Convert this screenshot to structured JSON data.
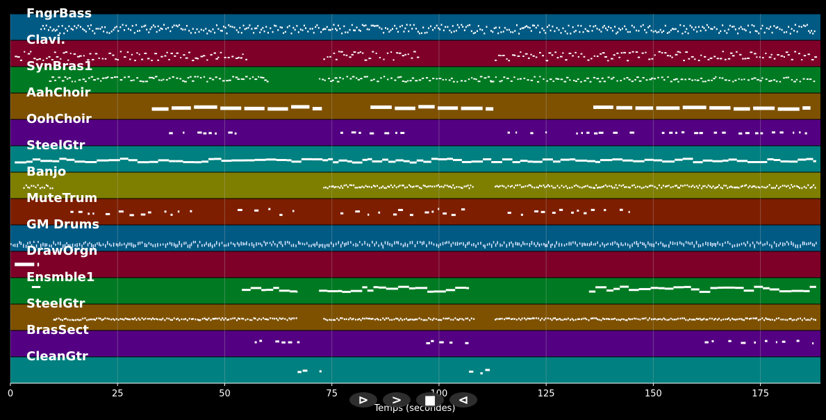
{
  "chart_data": {
    "type": "piano-roll",
    "xlabel": "Temps (secondes)",
    "xlim": [
      0,
      189
    ],
    "x_ticks": [
      0,
      25,
      50,
      75,
      100,
      125,
      150,
      175
    ],
    "grid": true,
    "tracks": [
      {
        "name": "FngrBass",
        "color": "#005a84",
        "segments": [
          [
            7,
            73
          ],
          [
            73,
            111
          ],
          [
            112,
            188
          ]
        ],
        "style": "dense-notes",
        "pitch": [
          0.38,
          0.72
        ]
      },
      {
        "name": "Clavi.",
        "color": "#7e0028",
        "segments": [
          [
            1,
            55
          ],
          [
            73,
            95
          ],
          [
            113,
            188
          ]
        ],
        "style": "scattered-notes",
        "pitch": [
          0.4,
          0.75
        ]
      },
      {
        "name": "SynBras1",
        "color": "#007a22",
        "segments": [
          [
            9,
            60
          ],
          [
            72,
            112
          ],
          [
            112,
            188
          ]
        ],
        "style": "scattered-notes",
        "pitch": [
          0.35,
          0.55
        ]
      },
      {
        "name": "AahChoir",
        "color": "#7e5100",
        "segments": [
          [
            33,
            73
          ],
          [
            84,
            113
          ],
          [
            136,
            187
          ]
        ],
        "style": "long-chords",
        "pitch": [
          0.45,
          0.55
        ]
      },
      {
        "name": "OohChoir",
        "color": "#540082",
        "segments": [
          [
            37,
            53
          ],
          [
            77,
            93
          ],
          [
            116,
            126
          ],
          [
            132,
            145
          ],
          [
            152,
            186
          ]
        ],
        "style": "sparse-blocks",
        "pitch": [
          0.45,
          0.5
        ]
      },
      {
        "name": "SteelGtr",
        "color": "#008080",
        "segments": [
          [
            1,
            7
          ],
          [
            7,
            188
          ]
        ],
        "style": "continuous-line",
        "pitch": [
          0.45,
          0.6
        ]
      },
      {
        "name": "Banjo",
        "color": "#7e7e00",
        "segments": [
          [
            3,
            10
          ],
          [
            73,
            108
          ],
          [
            113,
            188
          ]
        ],
        "style": "dense-notes",
        "pitch": [
          0.45,
          0.58
        ]
      },
      {
        "name": "MuteTrum",
        "color": "#7e1e00",
        "segments": [
          [
            14,
            43
          ],
          [
            53,
            67
          ],
          [
            77,
            106
          ],
          [
            116,
            146
          ]
        ],
        "style": "sparse-blocks",
        "pitch": [
          0.35,
          0.6
        ]
      },
      {
        "name": "GM Drums",
        "color": "#005a84",
        "segments": [
          [
            0,
            188
          ]
        ],
        "style": "drum-hits",
        "pitch": [
          0.6,
          0.75
        ]
      },
      {
        "name": "DrawOrgn",
        "color": "#7e0028",
        "segments": [
          [
            1,
            7
          ]
        ],
        "style": "long-chords",
        "pitch": [
          0.4,
          0.45
        ]
      },
      {
        "name": "Ensmble1",
        "color": "#007a22",
        "segments": [
          [
            5,
            7
          ],
          [
            54,
            67
          ],
          [
            72,
            107
          ],
          [
            135,
            188
          ]
        ],
        "style": "continuous-line",
        "pitch": [
          0.3,
          0.5
        ]
      },
      {
        "name": "SteelGtr",
        "color": "#7e5100",
        "segments": [
          [
            10,
            67
          ],
          [
            73,
            108
          ],
          [
            113,
            188
          ]
        ],
        "style": "dense-notes",
        "pitch": [
          0.5,
          0.58
        ]
      },
      {
        "name": "BrasSect",
        "color": "#540082",
        "segments": [
          [
            57,
            67
          ],
          [
            97,
            107
          ],
          [
            162,
            188
          ]
        ],
        "style": "sparse-blocks",
        "pitch": [
          0.35,
          0.45
        ]
      },
      {
        "name": "CleanGtr",
        "color": "#008080",
        "segments": [
          [
            67,
            73
          ],
          [
            107,
            113
          ]
        ],
        "style": "sparse-blocks",
        "pitch": [
          0.45,
          0.6
        ]
      }
    ]
  },
  "controls": [
    {
      "name": "play-icon",
      "glyph": "⊳"
    },
    {
      "name": "forward-icon",
      "glyph": ">"
    },
    {
      "name": "stop-icon",
      "glyph": "■"
    },
    {
      "name": "rewind-icon",
      "glyph": "⊲"
    }
  ]
}
